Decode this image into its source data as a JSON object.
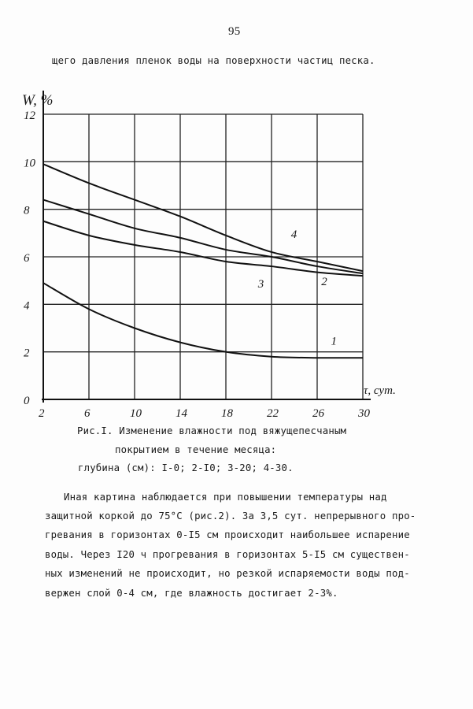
{
  "page_number": "95",
  "top_line": "щего давления пленок воды на поверхности частиц песка.",
  "chart_data": {
    "type": "line",
    "title": "",
    "ylabel": "W, %",
    "xlabel": "τ, сут.",
    "xlim": [
      2,
      30
    ],
    "ylim": [
      0,
      12
    ],
    "x_ticks": [
      "2",
      "6",
      "10",
      "14",
      "18",
      "22",
      "26",
      "30"
    ],
    "y_ticks": [
      "0",
      "2",
      "4",
      "6",
      "8",
      "10",
      "12"
    ],
    "grid": true,
    "x": [
      2,
      6,
      10,
      14,
      18,
      22,
      26,
      30
    ],
    "series": [
      {
        "name": "1",
        "values": [
          4.9,
          3.8,
          3.0,
          2.4,
          2.0,
          1.8,
          1.75,
          1.75
        ]
      },
      {
        "name": "2",
        "values": [
          7.5,
          6.9,
          6.5,
          6.2,
          5.8,
          5.6,
          5.35,
          5.2
        ]
      },
      {
        "name": "3",
        "values": [
          8.4,
          7.8,
          7.2,
          6.8,
          6.3,
          6.0,
          5.6,
          5.3
        ]
      },
      {
        "name": "4",
        "values": [
          9.9,
          9.1,
          8.4,
          7.7,
          6.9,
          6.2,
          5.8,
          5.4
        ]
      }
    ]
  },
  "caption": [
    "Рис.I. Изменение влажности под вяжущепесчаным",
    "покрытием в течение месяца:",
    "глубина (см): I-0; 2-I0; 3-20; 4-30."
  ],
  "paragraph": [
    "Иная картина наблюдается при повышении температуры над",
    "защитной коркой до 75°С (рис.2). За 3,5 сут. непрерывного про-",
    "гревания в горизонтах 0-I5 см происходит наибольшее испарение",
    "воды. Через I20 ч прогревания в горизонтах 5-I5 см существен-",
    "ных изменений не происходит, но резкой испаряемости воды под-",
    "вержен слой 0-4 см, где влажность достигает 2-3%."
  ]
}
